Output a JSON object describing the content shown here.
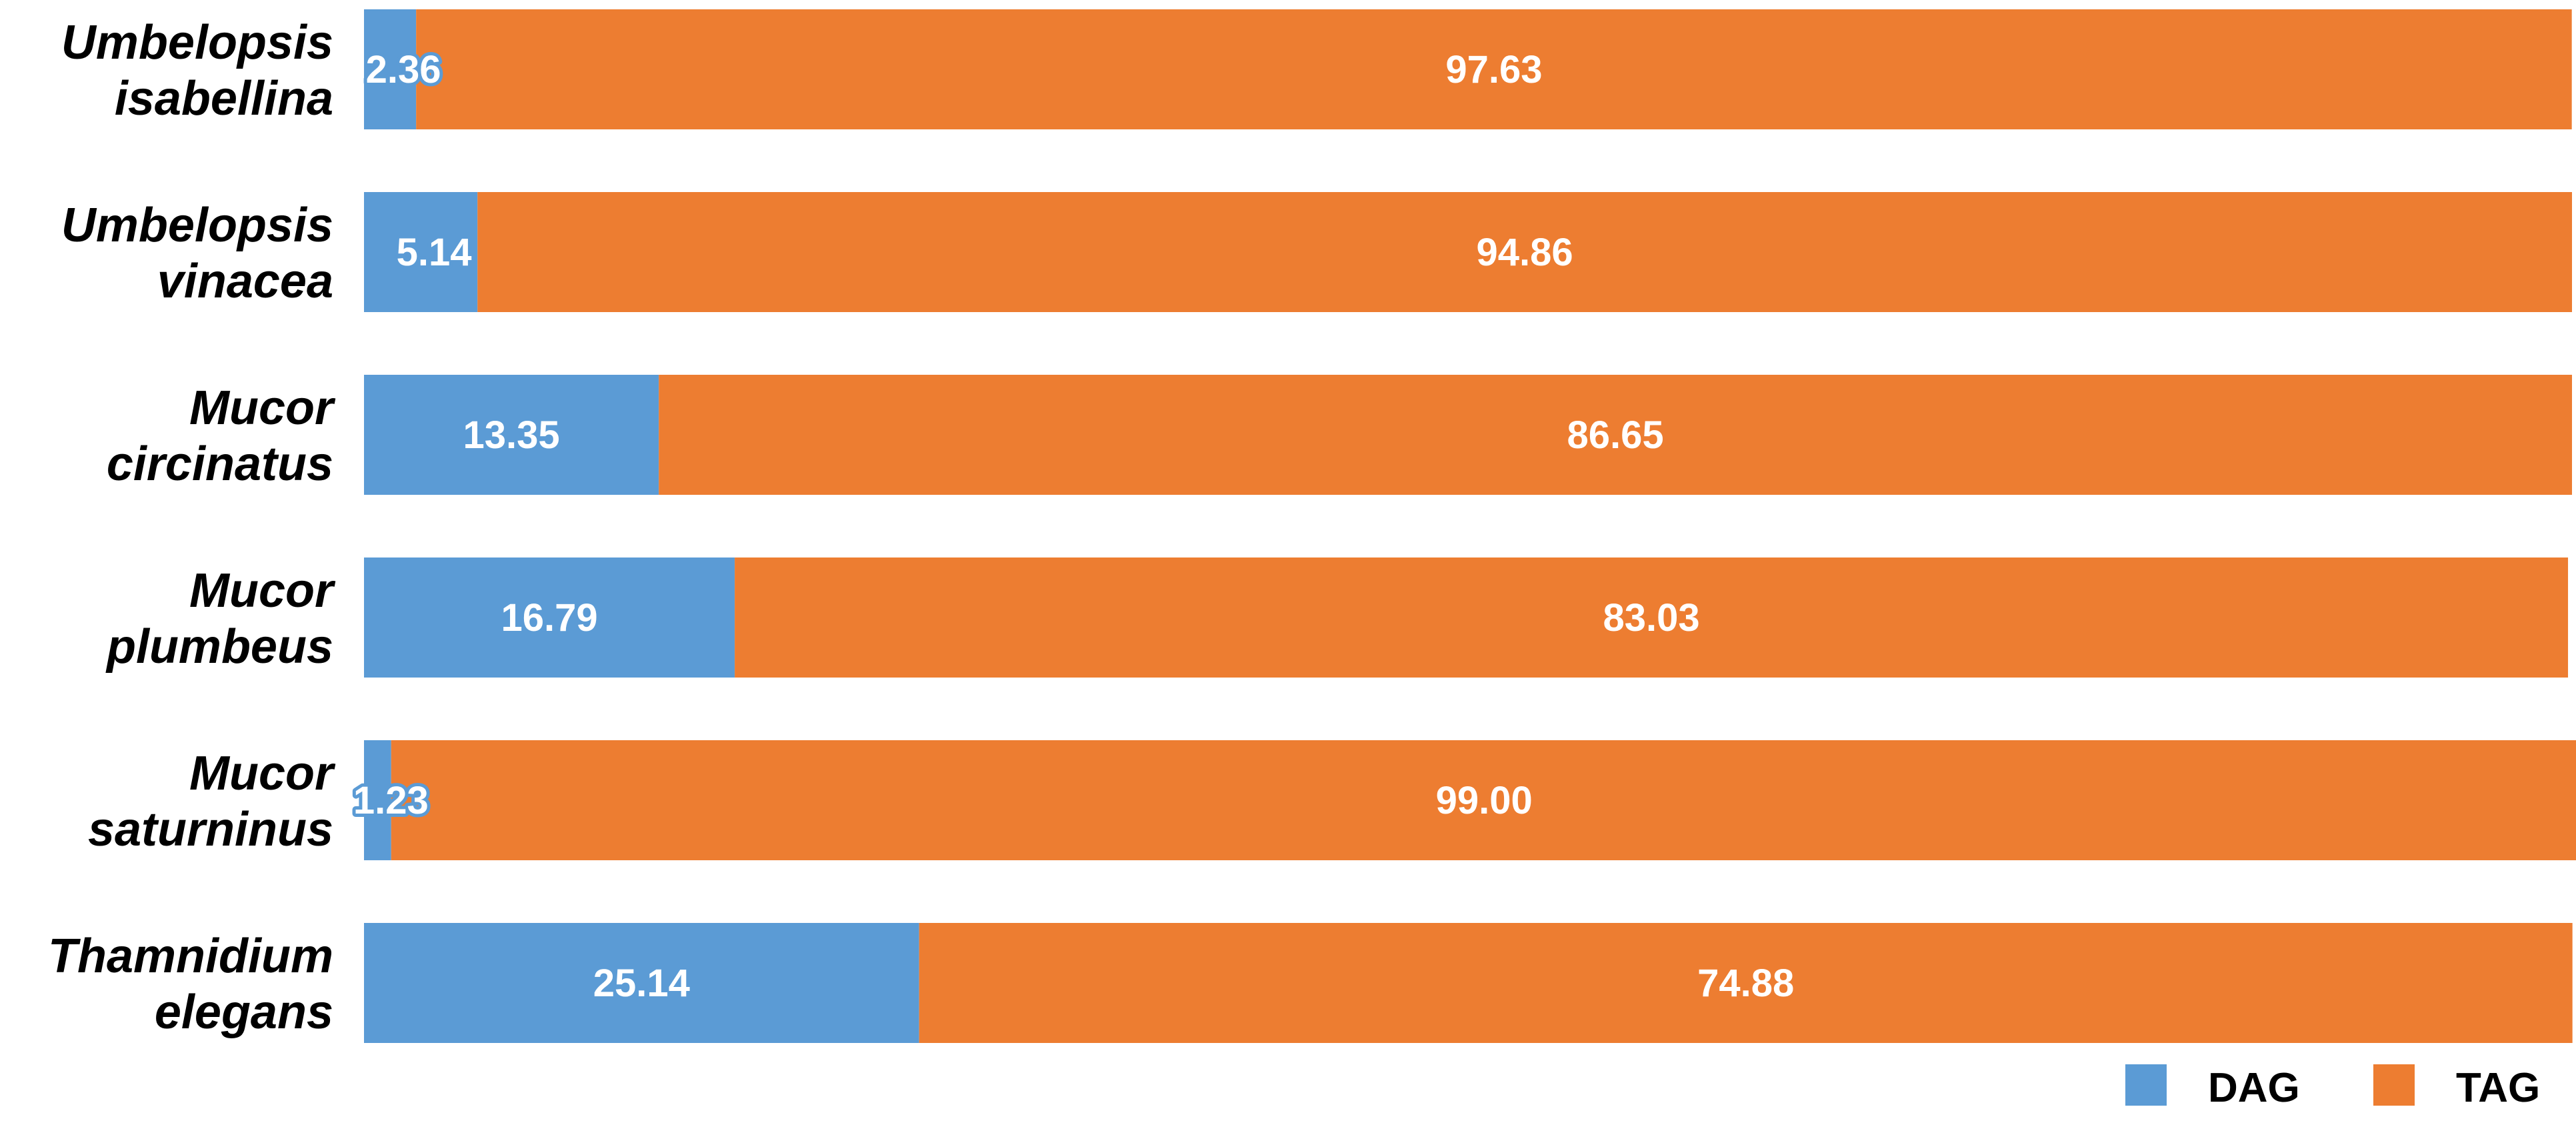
{
  "chart_data": {
    "type": "bar",
    "orientation": "horizontal",
    "stacked": true,
    "categories": [
      [
        "Umbelopsis",
        "isabellina"
      ],
      [
        "Umbelopsis",
        "vinacea"
      ],
      [
        "Mucor",
        "circinatus"
      ],
      [
        "Mucor",
        "plumbeus"
      ],
      [
        "Mucor",
        "saturninus"
      ],
      [
        "Thamnidium",
        "elegans"
      ]
    ],
    "series": [
      {
        "name": "DAG",
        "color": "#5b9bd5",
        "values": [
          2.36,
          5.14,
          13.35,
          16.79,
          1.23,
          25.14
        ],
        "labels": [
          "2.36",
          "5.14",
          "13.35",
          "16.79",
          "1.23",
          "25.14"
        ]
      },
      {
        "name": "TAG",
        "color": "#ed7d31",
        "values": [
          97.63,
          94.86,
          86.65,
          83.03,
          99.0,
          74.88
        ],
        "labels": [
          "97.63",
          "94.86",
          "86.65",
          "83.03",
          "99.00",
          "74.88"
        ]
      }
    ],
    "xlim": [
      0,
      100
    ],
    "grid": false,
    "legend_position": "bottom-right"
  }
}
